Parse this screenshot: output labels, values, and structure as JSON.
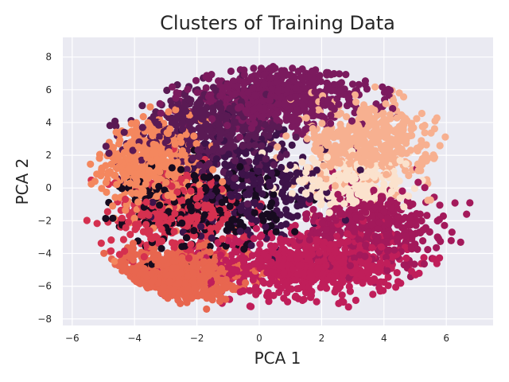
{
  "chart_data": {
    "type": "scatter",
    "title": "Clusters of Training Data",
    "xlabel": "PCA 1",
    "ylabel": "PCA 2",
    "xlim": [
      -6.3,
      7.5
    ],
    "ylim": [
      -8.4,
      9.2
    ],
    "xticks": [
      -6,
      -4,
      -2,
      0,
      2,
      4,
      6
    ],
    "yticks": [
      -8,
      -6,
      -4,
      -2,
      0,
      2,
      4,
      6,
      8
    ],
    "grid": true,
    "legend": "none",
    "background_color": "#eaeaf2",
    "grid_color": "#ffffff",
    "clusters": [
      {
        "color": "#f4875e",
        "center": [
          -3.4,
          1.4
        ],
        "spread": [
          0.8,
          1.4
        ],
        "count": 520
      },
      {
        "color": "#e8664f",
        "center": [
          -2.8,
          -5.3
        ],
        "spread": [
          1.2,
          0.8
        ],
        "count": 680
      },
      {
        "color": "#c01e5a",
        "center": [
          1.6,
          -4.6
        ],
        "spread": [
          1.6,
          1.0
        ],
        "count": 720
      },
      {
        "color": "#a3195b",
        "center": [
          3.6,
          -2.3
        ],
        "spread": [
          1.1,
          1.2
        ],
        "count": 420
      },
      {
        "color": "#7b1a5e",
        "center": [
          0.6,
          5.5
        ],
        "spread": [
          1.5,
          0.9
        ],
        "count": 650
      },
      {
        "color": "#5a1a54",
        "center": [
          -1.6,
          3.6
        ],
        "spread": [
          1.2,
          1.3
        ],
        "count": 450
      },
      {
        "color": "#170b1f",
        "center": [
          -1.9,
          -1.2
        ],
        "spread": [
          1.2,
          1.3
        ],
        "count": 320
      },
      {
        "color": "#3d1349",
        "center": [
          -0.3,
          0.2
        ],
        "spread": [
          1.2,
          1.6
        ],
        "count": 300
      },
      {
        "color": "#d5304f",
        "center": [
          -2.6,
          -1.6
        ],
        "spread": [
          1.1,
          1.3
        ],
        "count": 350
      },
      {
        "color": "#f7b090",
        "center": [
          3.5,
          2.8
        ],
        "spread": [
          1.0,
          1.3
        ],
        "count": 450
      },
      {
        "color": "#fbe2cd",
        "center": [
          3.0,
          0.2
        ],
        "spread": [
          0.9,
          0.9
        ],
        "count": 220
      }
    ]
  }
}
